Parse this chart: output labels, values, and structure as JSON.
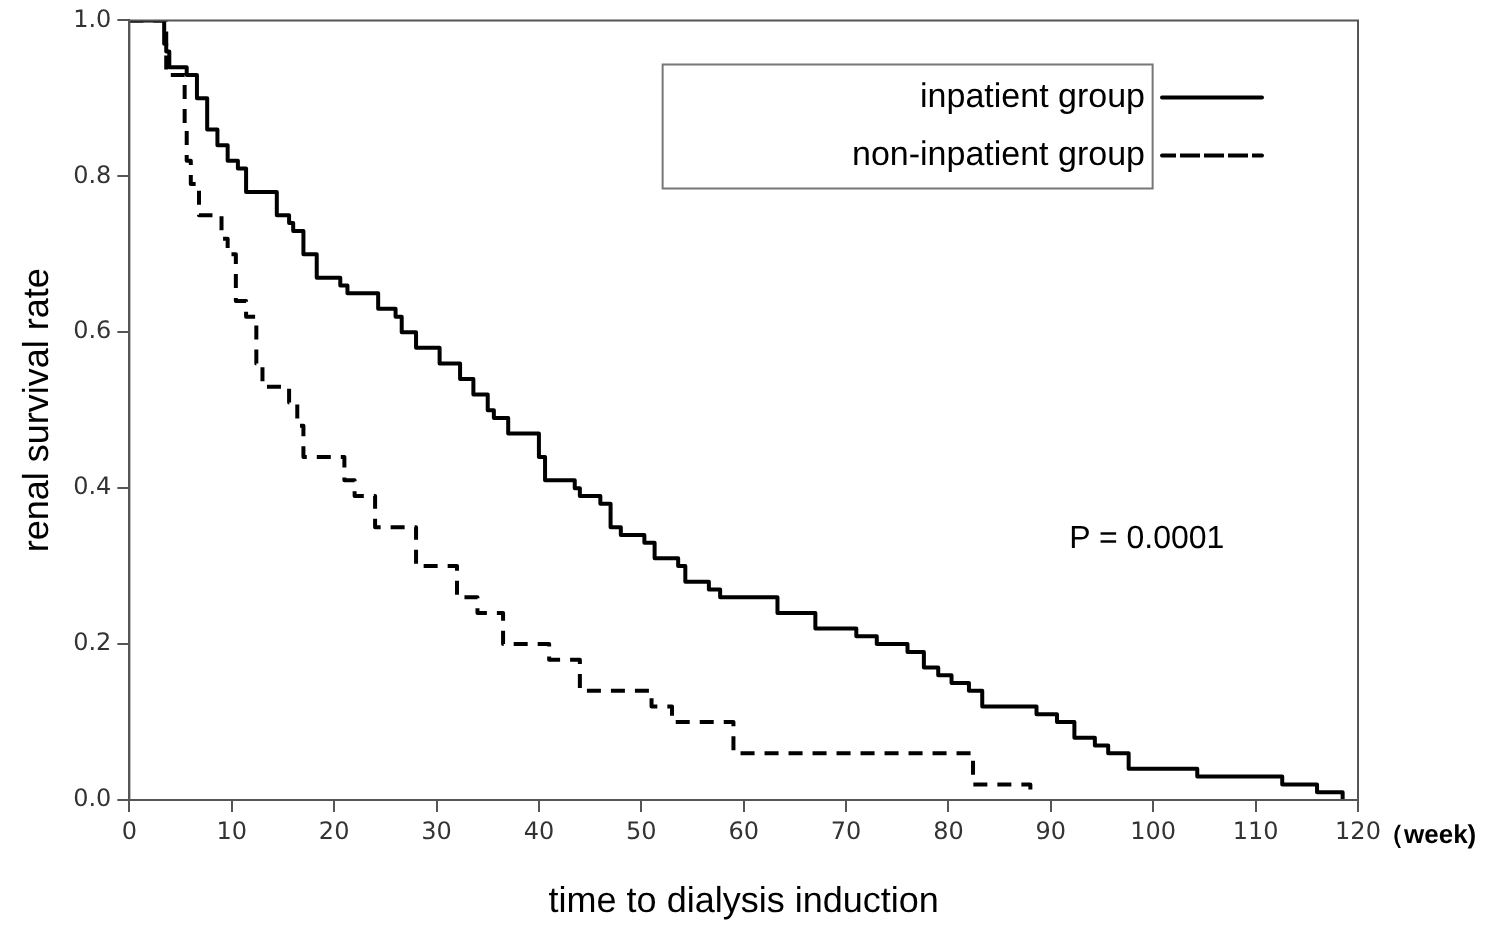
{
  "chart_data": {
    "type": "step",
    "xlabel": "time to dialysis induction",
    "ylabel": "renal survival rate",
    "annotations": [
      "P = 0.0001",
      "（week)"
    ],
    "xlim": [
      0,
      120
    ],
    "xticks": [
      0,
      10,
      20,
      30,
      40,
      50,
      60,
      70,
      80,
      90,
      100,
      110,
      120
    ],
    "ylim": [
      0,
      1
    ],
    "yticks": [
      {
        "value": 0,
        "label": "0.0"
      },
      0.2,
      0.4,
      0.6,
      0.8,
      {
        "value": 1,
        "label": "1.0"
      }
    ],
    "grid": false,
    "legend": "top right",
    "marker": "none",
    "series": [
      {
        "name": "inpatient group",
        "color": "#000000",
        "line_style": "solid",
        "x": [
          0,
          3.4,
          3.6,
          3.9,
          5.6,
          6.6,
          7.6,
          8.6,
          9.6,
          10.6,
          11.4,
          14.4,
          15.6,
          16,
          17,
          18.3,
          20.6,
          21.3,
          24.3,
          26,
          26.6,
          28,
          30.3,
          32.3,
          33.6,
          35,
          35.6,
          37,
          40,
          40.6,
          43.5,
          44,
          46,
          47,
          48,
          50.3,
          51.3,
          53.6,
          54.3,
          56.6,
          57.7,
          63.3,
          67,
          71,
          73,
          76,
          77.6,
          79,
          80.3,
          82,
          83.3,
          88.6,
          90.6,
          92.3,
          94.3,
          95.6,
          97.6,
          104.3,
          112.6,
          116,
          118.5
        ],
        "values": [
          1,
          0.97,
          0.96,
          0.94,
          0.93,
          0.9,
          0.86,
          0.84,
          0.82,
          0.81,
          0.78,
          0.75,
          0.74,
          0.73,
          0.7,
          0.67,
          0.66,
          0.65,
          0.63,
          0.62,
          0.6,
          0.58,
          0.56,
          0.54,
          0.52,
          0.5,
          0.49,
          0.47,
          0.44,
          0.41,
          0.4,
          0.39,
          0.38,
          0.35,
          0.34,
          0.33,
          0.31,
          0.3,
          0.28,
          0.27,
          0.26,
          0.24,
          0.22,
          0.21,
          0.2,
          0.19,
          0.17,
          0.16,
          0.15,
          0.14,
          0.12,
          0.11,
          0.1,
          0.08,
          0.07,
          0.06,
          0.04,
          0.03,
          0.02,
          0.01,
          0
        ]
      },
      {
        "name": "non-inpatient group",
        "color": "#000000",
        "line_style": "dashed",
        "x": [
          0,
          3.6,
          5.4,
          5.6,
          6,
          6.8,
          9,
          9.6,
          10.4,
          11.4,
          12.4,
          13,
          15.6,
          16.4,
          17,
          21,
          22,
          24,
          28,
          32,
          34,
          36.5,
          41,
          44,
          51,
          53,
          59,
          82.4,
          88
        ],
        "values": [
          1,
          0.93,
          0.86,
          0.82,
          0.79,
          0.75,
          0.72,
          0.7,
          0.64,
          0.62,
          0.56,
          0.53,
          0.51,
          0.48,
          0.44,
          0.41,
          0.39,
          0.35,
          0.3,
          0.26,
          0.24,
          0.2,
          0.18,
          0.14,
          0.12,
          0.1,
          0.06,
          0.02,
          0
        ]
      }
    ]
  }
}
